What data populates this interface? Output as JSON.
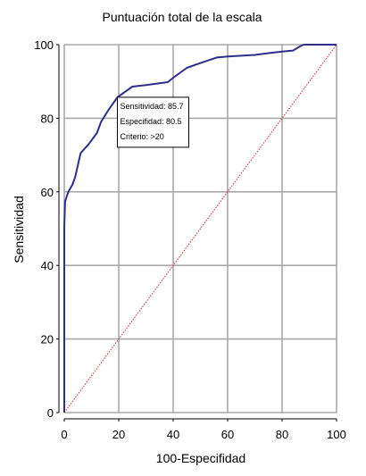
{
  "chart_data": {
    "type": "line",
    "title": "Puntuación total de la escala",
    "xlabel": "100-Especifidad",
    "ylabel": "Sensitividad",
    "xlim": [
      0,
      100
    ],
    "ylim": [
      0,
      100
    ],
    "x_ticks": [
      0,
      20,
      40,
      60,
      80,
      100
    ],
    "y_ticks": [
      0,
      20,
      40,
      60,
      80,
      100
    ],
    "grid": true,
    "series": [
      {
        "color": "#2e2e8c",
        "style": "solid",
        "x": [
          0,
          0,
          0.3,
          0.8,
          1.5,
          3,
          4,
          6,
          9,
          12,
          13.5,
          16,
          19.5,
          25,
          30,
          38,
          40,
          45,
          50,
          56,
          60,
          70,
          75,
          80,
          84,
          87,
          88,
          100
        ],
        "y": [
          0,
          50,
          57.3,
          58.5,
          60,
          62,
          64,
          70.5,
          73,
          76,
          79,
          82,
          85.7,
          88.6,
          89,
          89.8,
          91,
          93.7,
          95,
          96.5,
          96.8,
          97.2,
          97.7,
          98.1,
          98.4,
          99.7,
          100,
          100
        ]
      },
      {
        "color": "#c62828",
        "style": "dotted",
        "x": [
          0,
          100
        ],
        "y": [
          0,
          100
        ]
      }
    ],
    "annotation": {
      "lines": [
        "Sensitividad: 85.7",
        "Especifidad: 80.5",
        "Criterio: >20"
      ],
      "anchor_x": 19.5,
      "anchor_y": 85.7
    }
  }
}
